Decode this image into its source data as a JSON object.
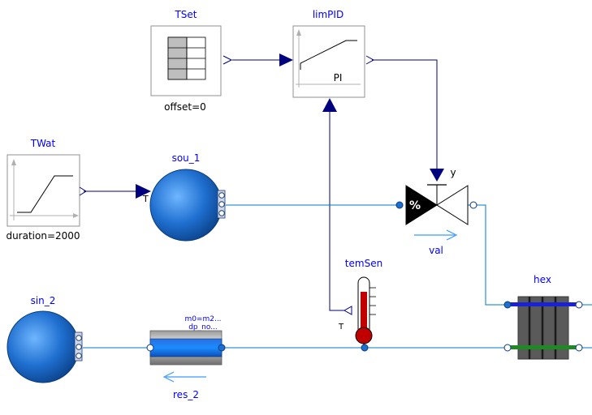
{
  "colors": {
    "signal": "#00007f",
    "fluid": "#0078c8",
    "label": "#0000ff",
    "dark_text": "#000000",
    "ball": "#1f6fd0",
    "hex_blue": "#1a22d8",
    "hex_green": "#1f8a24",
    "thermo_red": "#c00000",
    "hex_gray": "#5a5a5a"
  },
  "blocks": {
    "tset": {
      "name": "TSet",
      "param": "offset=0",
      "icon": "table-icon"
    },
    "limpid": {
      "name": "limPID",
      "inner": "PI",
      "icon": "pid-icon"
    },
    "twat": {
      "name": "TWat",
      "param": "duration=2000",
      "icon": "ramp-icon"
    },
    "sou1": {
      "name": "sou_1",
      "port": "T",
      "icon": "boundary-source-icon"
    },
    "sin2": {
      "name": "sin_2",
      "icon": "boundary-sink-icon"
    },
    "res2": {
      "name": "res_2",
      "param1": "m0=m2...",
      "param2": "dp_no...",
      "icon": "pipe-resistance-icon"
    },
    "val": {
      "name": "val",
      "input": "y",
      "symbol": "%",
      "icon": "valve-icon"
    },
    "temsen": {
      "name": "temSen",
      "output": "T",
      "icon": "thermometer-icon"
    },
    "hex": {
      "name": "hex",
      "icon": "heat-exchanger-icon"
    }
  }
}
